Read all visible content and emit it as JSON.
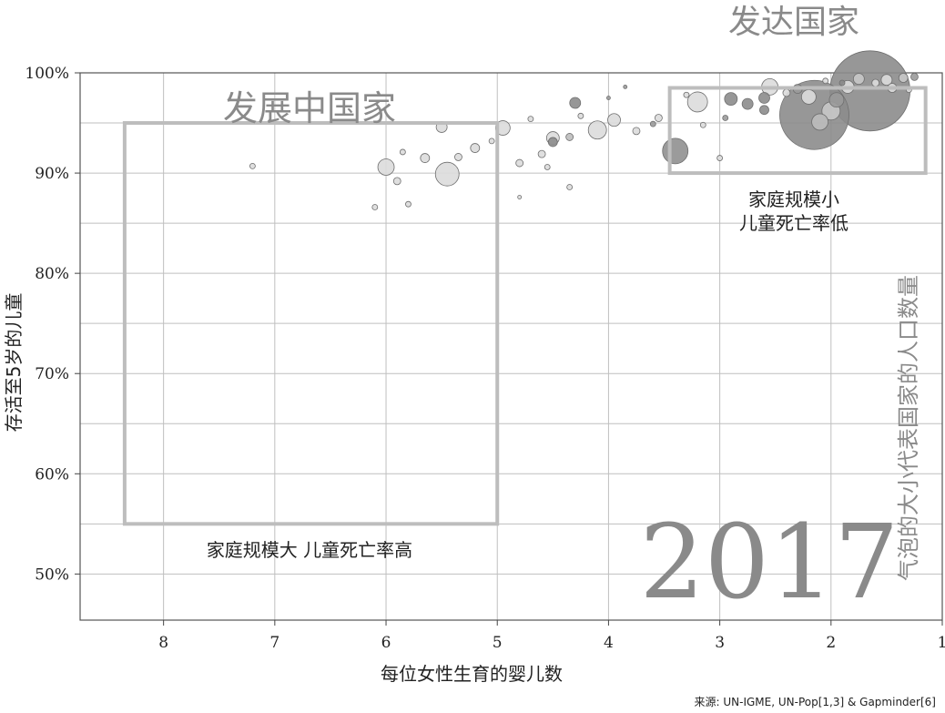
{
  "chart_data": {
    "type": "scatter",
    "year": "2017",
    "xlabel": "每位女性生育的婴儿数",
    "ylabel": "存活至5岁的儿童",
    "size_label": "气泡的大小代表国家的人口数量",
    "source": "来源: UN-IGME, UN-Pop[1,3] & Gapminder[6]",
    "x_ticks": [
      "8",
      "7",
      "6",
      "5",
      "4",
      "3",
      "2",
      "1"
    ],
    "y_ticks": [
      "50%",
      "60%",
      "70%",
      "80%",
      "90%",
      "100%"
    ],
    "xlim": [
      8.75,
      1.0
    ],
    "ylim": [
      45.4,
      100
    ],
    "x_reversed": true,
    "grid": true,
    "regions": [
      {
        "label": "发展中国家",
        "sublabel": "家庭规模大 儿童死亡率高",
        "x_range": [
          5.0,
          8.35
        ],
        "y_range": [
          55,
          95
        ]
      },
      {
        "label": "发达国家",
        "sublabel_line1": "家庭规模小",
        "sublabel_line2": "儿童死亡率低",
        "x_range": [
          1.15,
          3.45
        ],
        "y_range": [
          90,
          98.5
        ]
      }
    ],
    "points": [
      {
        "x": 1.65,
        "y": 98.2,
        "r": 44,
        "color": "#8c8c8c"
      },
      {
        "x": 2.15,
        "y": 95.8,
        "r": 38,
        "color": "#8c8c8c"
      },
      {
        "x": 3.4,
        "y": 92.2,
        "r": 14,
        "color": "#909090"
      },
      {
        "x": 5.45,
        "y": 89.9,
        "r": 13,
        "color": "#dcdcdc"
      },
      {
        "x": 4.1,
        "y": 94.3,
        "r": 10,
        "color": "#dcdcdc"
      },
      {
        "x": 3.2,
        "y": 97.1,
        "r": 11,
        "color": "#dcdcdc"
      },
      {
        "x": 6.0,
        "y": 90.6,
        "r": 9,
        "color": "#dcdcdc"
      },
      {
        "x": 2.55,
        "y": 98.6,
        "r": 9,
        "color": "#dcdcdc"
      },
      {
        "x": 2.2,
        "y": 97.6,
        "r": 8,
        "color": "#dcdcdc"
      },
      {
        "x": 1.95,
        "y": 97.3,
        "r": 8,
        "color": "#9a9a9a"
      },
      {
        "x": 2.0,
        "y": 96.2,
        "r": 10,
        "color": "#c8c8c8"
      },
      {
        "x": 2.1,
        "y": 95.1,
        "r": 9,
        "color": "#bdbdbd"
      },
      {
        "x": 1.85,
        "y": 98.6,
        "r": 7,
        "color": "#dcdcdc"
      },
      {
        "x": 1.75,
        "y": 99.4,
        "r": 6,
        "color": "#c8c8c8"
      },
      {
        "x": 1.5,
        "y": 99.3,
        "r": 6,
        "color": "#dcdcdc"
      },
      {
        "x": 1.35,
        "y": 99.5,
        "r": 5,
        "color": "#c8c8c8"
      },
      {
        "x": 1.25,
        "y": 99.6,
        "r": 4,
        "color": "#9a9a9a"
      },
      {
        "x": 2.6,
        "y": 97.5,
        "r": 6,
        "color": "#8c8c8c"
      },
      {
        "x": 2.9,
        "y": 97.4,
        "r": 7,
        "color": "#8c8c8c"
      },
      {
        "x": 2.75,
        "y": 96.9,
        "r": 6,
        "color": "#8c8c8c"
      },
      {
        "x": 2.6,
        "y": 96.3,
        "r": 5,
        "color": "#8c8c8c"
      },
      {
        "x": 2.3,
        "y": 98.4,
        "r": 5,
        "color": "#9a9a9a"
      },
      {
        "x": 4.5,
        "y": 93.5,
        "r": 7,
        "color": "#dcdcdc"
      },
      {
        "x": 3.95,
        "y": 95.3,
        "r": 7,
        "color": "#dcdcdc"
      },
      {
        "x": 4.95,
        "y": 94.5,
        "r": 8,
        "color": "#dcdcdc"
      },
      {
        "x": 5.5,
        "y": 94.6,
        "r": 6,
        "color": "#dcdcdc"
      },
      {
        "x": 5.2,
        "y": 92.5,
        "r": 5,
        "color": "#dcdcdc"
      },
      {
        "x": 5.9,
        "y": 89.2,
        "r": 4,
        "color": "#dcdcdc"
      },
      {
        "x": 4.3,
        "y": 97.0,
        "r": 6,
        "color": "#8c8c8c"
      },
      {
        "x": 4.5,
        "y": 93.1,
        "r": 5,
        "color": "#8c8c8c"
      },
      {
        "x": 4.6,
        "y": 91.9,
        "r": 4,
        "color": "#dcdcdc"
      },
      {
        "x": 4.8,
        "y": 91.0,
        "r": 4,
        "color": "#dcdcdc"
      },
      {
        "x": 4.35,
        "y": 93.6,
        "r": 4,
        "color": "#bdbdbd"
      },
      {
        "x": 5.65,
        "y": 91.5,
        "r": 5,
        "color": "#dcdcdc"
      },
      {
        "x": 5.35,
        "y": 91.6,
        "r": 4,
        "color": "#dcdcdc"
      },
      {
        "x": 6.1,
        "y": 86.6,
        "r": 3,
        "color": "#dcdcdc"
      },
      {
        "x": 5.8,
        "y": 86.9,
        "r": 3,
        "color": "#dcdcdc"
      },
      {
        "x": 7.2,
        "y": 90.7,
        "r": 3,
        "color": "#dcdcdc"
      },
      {
        "x": 4.55,
        "y": 90.6,
        "r": 3,
        "color": "#dcdcdc"
      },
      {
        "x": 4.8,
        "y": 87.6,
        "r": 2,
        "color": "#dcdcdc"
      },
      {
        "x": 4.35,
        "y": 88.6,
        "r": 3,
        "color": "#dcdcdc"
      },
      {
        "x": 3.55,
        "y": 95.5,
        "r": 4,
        "color": "#dcdcdc"
      },
      {
        "x": 3.75,
        "y": 94.2,
        "r": 4,
        "color": "#dcdcdc"
      },
      {
        "x": 3.6,
        "y": 94.9,
        "r": 3,
        "color": "#9a9a9a"
      },
      {
        "x": 3.15,
        "y": 94.8,
        "r": 3,
        "color": "#dcdcdc"
      },
      {
        "x": 2.4,
        "y": 98.0,
        "r": 4,
        "color": "#dcdcdc"
      },
      {
        "x": 2.95,
        "y": 95.5,
        "r": 3,
        "color": "#9a9a9a"
      },
      {
        "x": 3.3,
        "y": 97.8,
        "r": 3,
        "color": "#dcdcdc"
      },
      {
        "x": 1.6,
        "y": 99.0,
        "r": 4,
        "color": "#dcdcdc"
      },
      {
        "x": 1.45,
        "y": 98.5,
        "r": 5,
        "color": "#dcdcdc"
      },
      {
        "x": 1.3,
        "y": 98.3,
        "r": 3,
        "color": "#dcdcdc"
      },
      {
        "x": 1.9,
        "y": 99.0,
        "r": 3,
        "color": "#8c8c8c"
      },
      {
        "x": 2.05,
        "y": 99.2,
        "r": 3,
        "color": "#dcdcdc"
      },
      {
        "x": 4.0,
        "y": 97.5,
        "r": 2,
        "color": "#9a9a9a"
      },
      {
        "x": 3.85,
        "y": 98.6,
        "r": 2,
        "color": "#9a9a9a"
      },
      {
        "x": 4.25,
        "y": 95.7,
        "r": 3,
        "color": "#dcdcdc"
      },
      {
        "x": 4.7,
        "y": 95.4,
        "r": 3,
        "color": "#dcdcdc"
      },
      {
        "x": 5.05,
        "y": 93.2,
        "r": 3,
        "color": "#dcdcdc"
      },
      {
        "x": 5.85,
        "y": 92.1,
        "r": 3,
        "color": "#dcdcdc"
      },
      {
        "x": 3.0,
        "y": 91.5,
        "r": 3,
        "color": "#dcdcdc"
      }
    ]
  }
}
